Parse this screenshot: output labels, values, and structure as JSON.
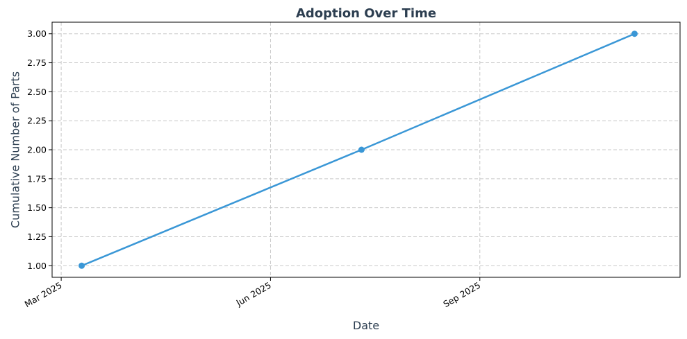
{
  "chart_data": {
    "type": "line",
    "title": "Adoption Over Time",
    "xlabel": "Date",
    "ylabel": "Cumulative Number of Parts",
    "x_type": "date",
    "xlim": [
      "2025-02-25",
      "2025-11-28"
    ],
    "ylim": [
      0.9,
      3.1
    ],
    "x_ticks": [
      {
        "date": "2025-03-01",
        "label": "Mar 2025"
      },
      {
        "date": "2025-06-01",
        "label": "Jun 2025"
      },
      {
        "date": "2025-09-01",
        "label": "Sep 2025"
      }
    ],
    "y_ticks": [
      {
        "value": 1.0,
        "label": "1.00"
      },
      {
        "value": 1.25,
        "label": "1.25"
      },
      {
        "value": 1.5,
        "label": "1.50"
      },
      {
        "value": 1.75,
        "label": "1.75"
      },
      {
        "value": 2.0,
        "label": "2.00"
      },
      {
        "value": 2.25,
        "label": "2.25"
      },
      {
        "value": 2.5,
        "label": "2.50"
      },
      {
        "value": 2.75,
        "label": "2.75"
      },
      {
        "value": 3.0,
        "label": "3.00"
      }
    ],
    "series": [
      {
        "points": [
          {
            "x": "2025-03-10",
            "y": 1
          },
          {
            "x": "2025-07-11",
            "y": 2
          },
          {
            "x": "2025-11-08",
            "y": 3
          }
        ]
      }
    ],
    "grid": true,
    "legend": "none",
    "colors": {
      "line": "#3a97d6",
      "title": "#2c3e50",
      "axis_label": "#2c3e50"
    }
  }
}
